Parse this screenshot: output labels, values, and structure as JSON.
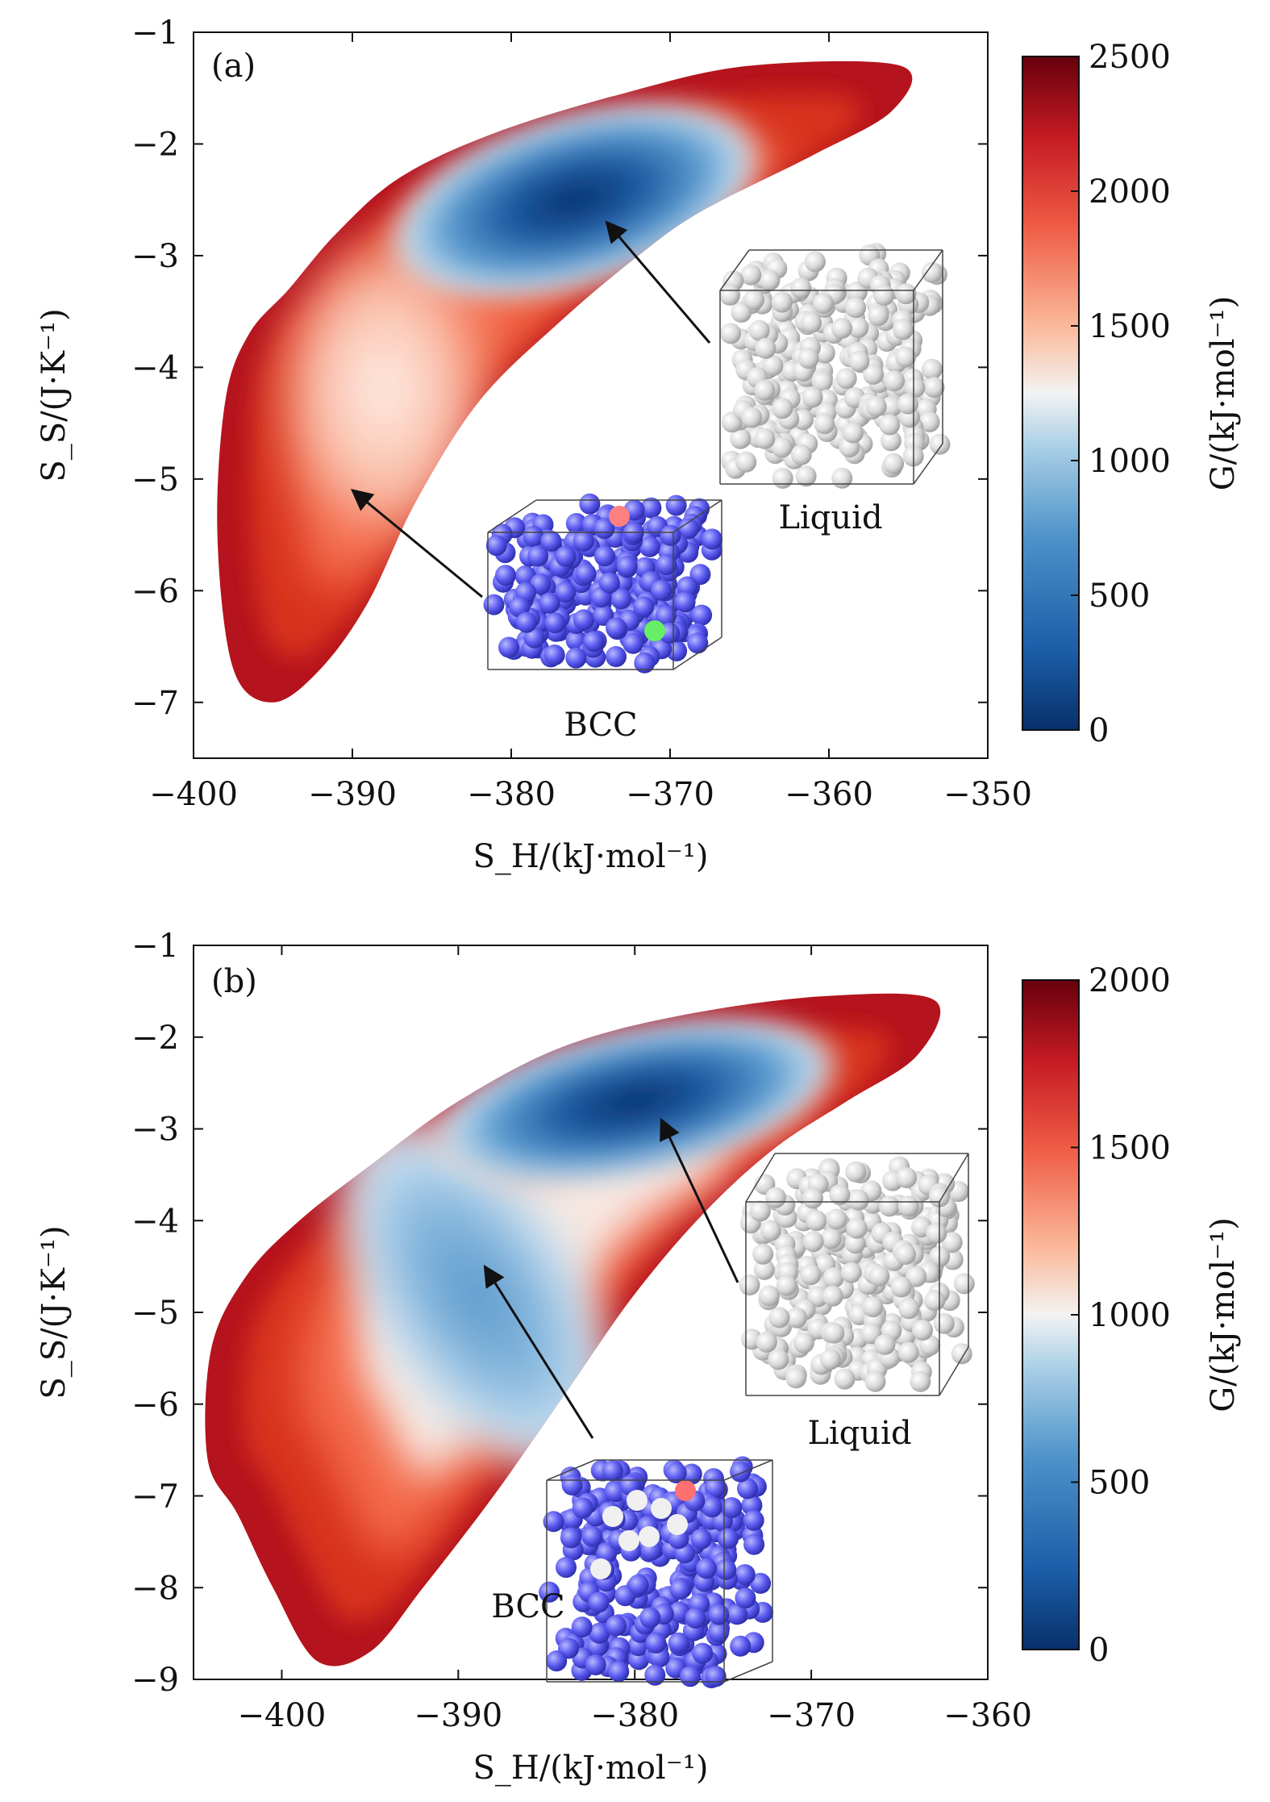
{
  "colors": {
    "map_low": "#08306b",
    "map_mid": "#f3f3f3",
    "map_high": "#67000d",
    "liquid_atom": "#dcdcdc",
    "bcc_atom": "#5b5bf0",
    "arrow": "#111111"
  },
  "chart_data": [
    {
      "type": "heatmap",
      "panel_label": "(a)",
      "xlabel": "S_H/(kJ·mol⁻¹)",
      "ylabel": "S_S/(J·K⁻¹)",
      "colorbar_label": "G/(kJ·mol⁻¹)",
      "xlim": [
        -400,
        -350
      ],
      "ylim": [
        -7.5,
        -1
      ],
      "xticks": [
        -400,
        -390,
        -380,
        -370,
        -360,
        -350
      ],
      "yticks": [
        -1,
        -2,
        -3,
        -4,
        -5,
        -6,
        -7
      ],
      "colorbar_range": [
        0,
        2500
      ],
      "colorbar_ticks": [
        0,
        500,
        1000,
        1500,
        2000,
        2500
      ],
      "annotations": [
        {
          "text": "Liquid",
          "point": [
            -374,
            -2.7
          ],
          "description": "free-energy minimum near S_H -374, S_S -2.6"
        },
        {
          "text": "BCC",
          "point": [
            -390,
            -5.1
          ],
          "description": "BCC region near S_H -390, S_S -5.1"
        }
      ],
      "minimum": {
        "x": -376,
        "y": -2.5,
        "G": 0
      }
    },
    {
      "type": "heatmap",
      "panel_label": "(b)",
      "xlabel": "S_H/(kJ·mol⁻¹)",
      "ylabel": "S_S/(J·K⁻¹)",
      "colorbar_label": "G/(kJ·mol⁻¹)",
      "xlim": [
        -405,
        -360
      ],
      "ylim": [
        -9,
        -1
      ],
      "xticks": [
        -400,
        -390,
        -380,
        -370,
        -360
      ],
      "yticks": [
        -1,
        -2,
        -3,
        -4,
        -5,
        -6,
        -7,
        -8,
        -9
      ],
      "colorbar_range": [
        0,
        2000
      ],
      "colorbar_ticks": [
        0,
        500,
        1000,
        1500,
        2000
      ],
      "annotations": [
        {
          "text": "Liquid",
          "point": [
            -378.5,
            -2.9
          ],
          "description": "free-energy minimum near S_H -379, S_S -2.7"
        },
        {
          "text": "BCC",
          "point": [
            -388.5,
            -4.5
          ],
          "description": "BCC region near S_H -389, S_S -4.6"
        }
      ],
      "minimum": {
        "x": -380,
        "y": -2.7,
        "G": 0
      }
    }
  ]
}
